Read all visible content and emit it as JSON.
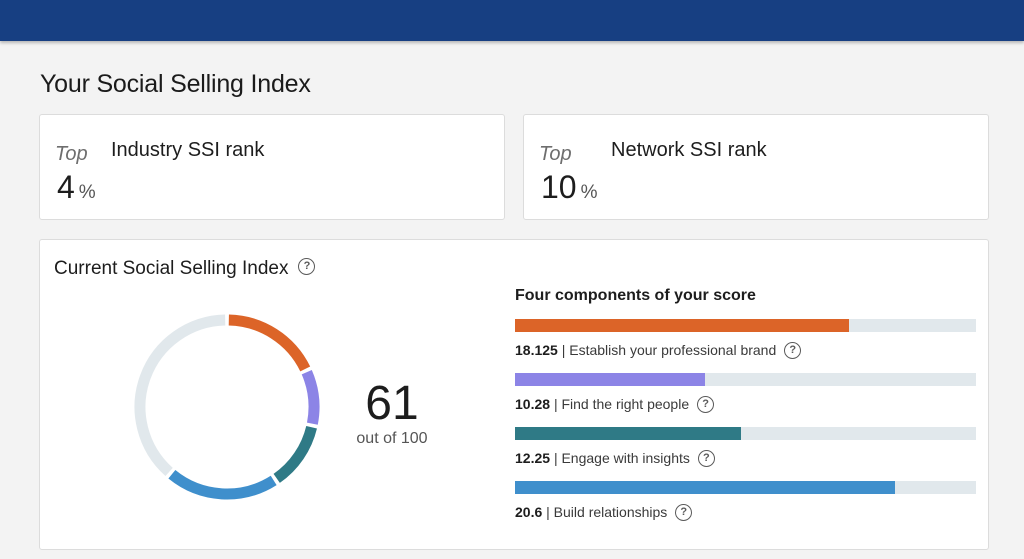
{
  "page": {
    "title": "Your Social Selling Index"
  },
  "ranks": [
    {
      "top_label": "Top",
      "name": "Industry SSI rank",
      "value": "4",
      "unit": "%"
    },
    {
      "top_label": "Top",
      "name": "Network SSI rank",
      "value": "10",
      "unit": "%"
    }
  ],
  "score": {
    "title": "Current Social Selling Index",
    "value": "61",
    "subtitle": "out of 100",
    "max": 100
  },
  "components": {
    "title": "Four components of your score",
    "separator": "|",
    "max_each": 25,
    "items": [
      {
        "score": "18.125",
        "label": "Establish your professional brand",
        "value": 18.125,
        "color": "#dc6428"
      },
      {
        "score": "10.28",
        "label": "Find the right people",
        "value": 10.28,
        "color": "#8c84e6"
      },
      {
        "score": "12.25",
        "label": "Engage with insights",
        "value": 12.25,
        "color": "#2f7a86"
      },
      {
        "score": "20.6",
        "label": "Build relationships",
        "value": 20.6,
        "color": "#3f8fcc"
      }
    ]
  },
  "colors": {
    "topbar": "#173f82",
    "track": "#e1e8ec"
  },
  "icons": {
    "help": "question-circle-icon"
  }
}
